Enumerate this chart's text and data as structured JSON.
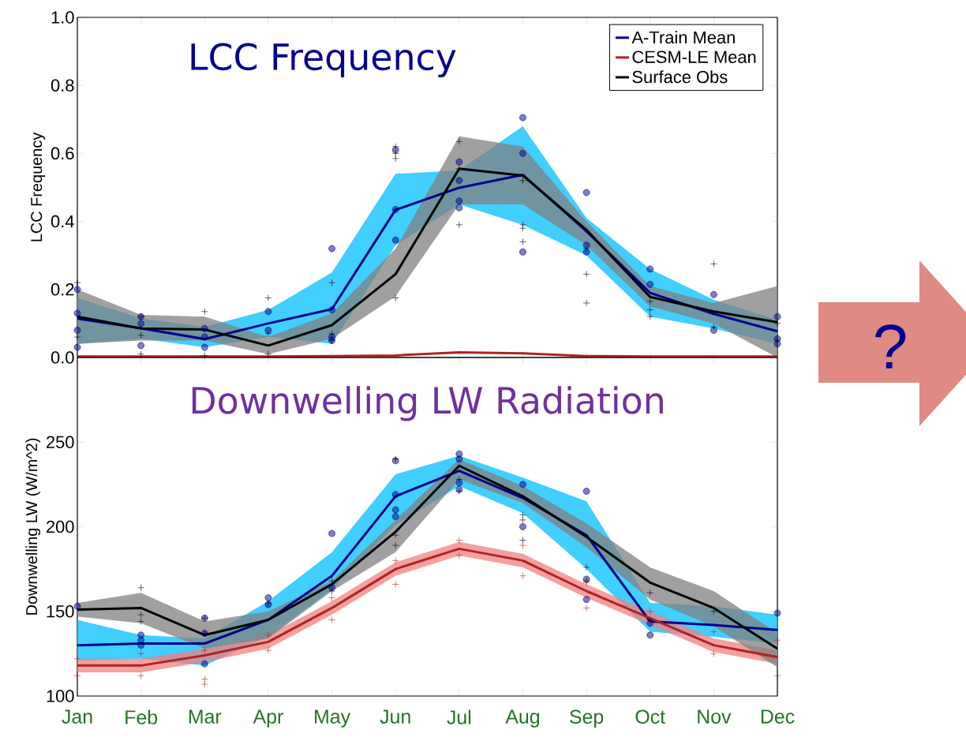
{
  "chart_data": [
    {
      "type": "line",
      "title": "LCC Frequency",
      "ylabel": "LCC Frequency",
      "categories": [
        "Jan",
        "Feb",
        "Mar",
        "Apr",
        "May",
        "Jun",
        "Jul",
        "Aug",
        "Sep",
        "Oct",
        "Nov",
        "Dec"
      ],
      "tick_labels": "y",
      "ylim": [
        0,
        1.0
      ],
      "yticks": [
        {
          "value": 0,
          "label": "0.0"
        },
        {
          "value": 0.2,
          "label": "0.2"
        },
        {
          "value": 0.4,
          "label": "0.4"
        },
        {
          "value": 0.6,
          "label": "0.6"
        },
        {
          "value": 0.8,
          "label": "0.8"
        },
        {
          "value": 1.0,
          "label": "1.0"
        }
      ],
      "legend": "top right",
      "series": [
        {
          "name": "A-Train Mean",
          "color": "#00008b",
          "values": [
            0.114,
            0.086,
            0.054,
            0.1,
            0.142,
            0.434,
            0.499,
            0.537,
            0.371,
            0.19,
            0.128,
            0.077
          ],
          "lower": [
            0.04,
            0.055,
            0.03,
            0.06,
            0.04,
            0.33,
            0.45,
            0.39,
            0.3,
            0.12,
            0.085,
            0.04
          ],
          "upper": [
            0.175,
            0.115,
            0.09,
            0.14,
            0.25,
            0.54,
            0.55,
            0.68,
            0.41,
            0.26,
            0.17,
            0.11
          ]
        },
        {
          "name": "CESM-LE Mean",
          "color": "#b22222",
          "values": [
            0.003,
            0.003,
            0.003,
            0.003,
            0.004,
            0.006,
            0.015,
            0.012,
            0.004,
            0.003,
            0.003,
            0.003
          ]
        },
        {
          "name": "Surface Obs",
          "color": "#000000",
          "values": [
            0.12,
            0.085,
            0.082,
            0.035,
            0.095,
            0.245,
            0.555,
            0.535,
            0.375,
            0.178,
            0.135,
            0.104
          ],
          "lower": [
            0.04,
            0.05,
            0.05,
            0.01,
            0.055,
            0.18,
            0.45,
            0.45,
            0.33,
            0.15,
            0.1,
            0.0
          ],
          "upper": [
            0.2,
            0.125,
            0.12,
            0.06,
            0.13,
            0.32,
            0.65,
            0.62,
            0.4,
            0.21,
            0.16,
            0.21
          ]
        },
        {
          "type": "scatter",
          "marker": "circle",
          "color": "#00008b",
          "x": [
            "Jan",
            "Jan",
            "Jan",
            "Jan",
            "Feb",
            "Feb",
            "Feb",
            "Mar",
            "Mar",
            "Mar",
            "Apr",
            "Apr",
            "May",
            "May",
            "May",
            "May",
            "Jun",
            "Jun",
            "Jun",
            "Jul",
            "Jul",
            "Jul",
            "Jul",
            "Aug",
            "Aug",
            "Aug",
            "Sep",
            "Sep",
            "Sep",
            "Oct",
            "Oct",
            "Nov",
            "Nov",
            "Dec",
            "Dec",
            "Dec"
          ],
          "values": [
            0.2,
            0.13,
            0.08,
            0.03,
            0.12,
            0.1,
            0.035,
            0.085,
            0.06,
            0.03,
            0.135,
            0.08,
            0.32,
            0.14,
            0.06,
            0.05,
            0.61,
            0.435,
            0.345,
            0.575,
            0.52,
            0.46,
            0.44,
            0.705,
            0.6,
            0.31,
            0.485,
            0.33,
            0.31,
            0.26,
            0.215,
            0.08,
            0.185,
            0.055,
            0.12,
            0.04
          ]
        },
        {
          "type": "scatter",
          "marker": "cross",
          "color": "#000000",
          "x": [
            "Jan",
            "Jan",
            "Feb",
            "Feb",
            "Feb",
            "Mar",
            "Mar",
            "Apr",
            "Apr",
            "Apr",
            "May",
            "May",
            "May",
            "Jun",
            "Jun",
            "Jun",
            "Jun",
            "Jul",
            "Jul",
            "Jul",
            "Aug",
            "Aug",
            "Aug",
            "Aug",
            "Sep",
            "Sep",
            "Sep",
            "Oct",
            "Oct",
            "Oct",
            "Nov",
            "Nov",
            "Dec",
            "Dec"
          ],
          "values": [
            0.22,
            0.06,
            0.12,
            0.065,
            0.01,
            0.135,
            0.005,
            0.07,
            0.01,
            0.175,
            0.07,
            0.05,
            0.22,
            0.175,
            0.62,
            0.6,
            0.585,
            0.39,
            0.635,
            0.555,
            0.39,
            0.52,
            0.38,
            0.34,
            0.32,
            0.245,
            0.16,
            0.14,
            0.165,
            0.12,
            0.09,
            0.275,
            0.1,
            0.05
          ]
        }
      ]
    },
    {
      "type": "line",
      "title": "Downwelling LW Radiation",
      "ylabel": "Downwelling LW (W/m^2)",
      "categories": [
        "Jan",
        "Feb",
        "Mar",
        "Apr",
        "May",
        "Jun",
        "Jul",
        "Aug",
        "Sep",
        "Oct",
        "Nov",
        "Dec"
      ],
      "ylim": [
        100,
        300
      ],
      "yticks": [
        100,
        150,
        200,
        250
      ],
      "annotations": [
        "?"
      ],
      "series": [
        {
          "color": "#00008b",
          "values": [
            130,
            131,
            131,
            145,
            171,
            218,
            233,
            217,
            195,
            144,
            142,
            139
          ],
          "lower": [
            121,
            122,
            118,
            135,
            163,
            201,
            224,
            208,
            175,
            138,
            135,
            131
          ],
          "upper": [
            145,
            136,
            134,
            156,
            185,
            231,
            242,
            229,
            215,
            155,
            153,
            148
          ]
        },
        {
          "color": "#b22222",
          "values": [
            118,
            118,
            124,
            132,
            152,
            175,
            187,
            180,
            162,
            146,
            130,
            123
          ],
          "lower": [
            114,
            114,
            120,
            128,
            148,
            171,
            183,
            176,
            158,
            142,
            126,
            119
          ],
          "upper": [
            122,
            122,
            128,
            136,
            156,
            179,
            191,
            184,
            166,
            150,
            134,
            127
          ]
        },
        {
          "color": "#000000",
          "values": [
            151,
            152,
            136,
            145,
            166,
            197,
            236,
            218,
            194,
            167,
            152,
            128
          ],
          "lower": [
            147,
            143,
            128,
            134,
            162,
            185,
            228,
            214,
            188,
            157,
            141,
            117
          ],
          "upper": [
            155,
            161,
            144,
            150,
            168,
            204,
            240,
            224,
            202,
            176,
            162,
            137
          ]
        },
        {
          "type": "scatter",
          "marker": "circle",
          "color": "#00008b",
          "x": [
            "Jan",
            "Feb",
            "Feb",
            "Feb",
            "Mar",
            "Mar",
            "Mar",
            "Apr",
            "Apr",
            "May",
            "May",
            "Jun",
            "Jun",
            "Jun",
            "Jun",
            "Jul",
            "Jul",
            "Jul",
            "Jul",
            "Aug",
            "Aug",
            "Sep",
            "Sep",
            "Sep",
            "Oct",
            "Oct",
            "Dec"
          ],
          "values": [
            153,
            136,
            133,
            130,
            146,
            137,
            119,
            158,
            154,
            196,
            164,
            239,
            219,
            210,
            206,
            243,
            240,
            226,
            222,
            225,
            200,
            221,
            169,
            157,
            136,
            143,
            149
          ]
        },
        {
          "type": "scatter",
          "marker": "cross",
          "color": "#000000",
          "x": [
            "Feb",
            "Feb",
            "Feb",
            "Mar",
            "Mar",
            "Apr",
            "May",
            "May",
            "Jun",
            "Jun",
            "Jun",
            "Jul",
            "Jul",
            "Aug",
            "Aug",
            "Aug",
            "Sep",
            "Sep",
            "Oct",
            "Oct",
            "Nov"
          ],
          "values": [
            164,
            148,
            144,
            146,
            137,
            155,
            168,
            162,
            195,
            189,
            240,
            228,
            221,
            207,
            204,
            192,
            176,
            168,
            161,
            145,
            150
          ]
        },
        {
          "type": "scatter",
          "marker": "cross",
          "color": "#b22222",
          "x": [
            "Jan",
            "Jan",
            "Feb",
            "Feb",
            "Mar",
            "Mar",
            "Mar",
            "Apr",
            "Apr",
            "May",
            "May",
            "Jun",
            "Jun",
            "Jul",
            "Jul",
            "Aug",
            "Aug",
            "Sep",
            "Sep",
            "Oct",
            "Oct",
            "Nov",
            "Nov",
            "Dec",
            "Dec"
          ],
          "values": [
            122,
            112,
            125,
            112,
            127,
            110,
            107,
            136,
            127,
            158,
            145,
            180,
            166,
            192,
            183,
            189,
            171,
            167,
            152,
            150,
            143,
            138,
            125,
            133,
            112
          ]
        }
      ]
    }
  ]
}
